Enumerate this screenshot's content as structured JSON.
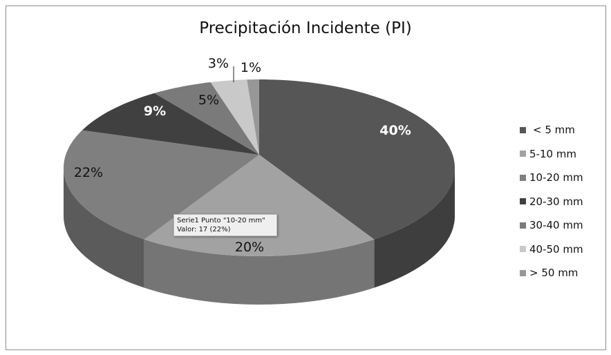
{
  "chart_data": {
    "type": "pie",
    "title": "Precipitación Incidente (PI)",
    "categories": [
      "< 5 mm",
      "5-10 mm",
      "10-20 mm",
      "20-30 mm",
      "30-40 mm",
      "40-50 mm",
      "> 50 mm"
    ],
    "values": [
      40,
      20,
      22,
      9,
      5,
      3,
      1
    ],
    "data_labels": [
      "40%",
      "20%",
      "22%",
      "9%",
      "5%",
      "3%",
      "1%"
    ],
    "colors": [
      "#565656",
      "#a2a2a2",
      "#7f7f7f",
      "#404040",
      "#7a7a7a",
      "#c9c9c9",
      "#979797"
    ],
    "legend_position": "right",
    "style": "3d"
  },
  "tooltip": {
    "line1": "Serie1 Punto \"10-20 mm\"",
    "line2": "Valor: 17 (22%)"
  }
}
